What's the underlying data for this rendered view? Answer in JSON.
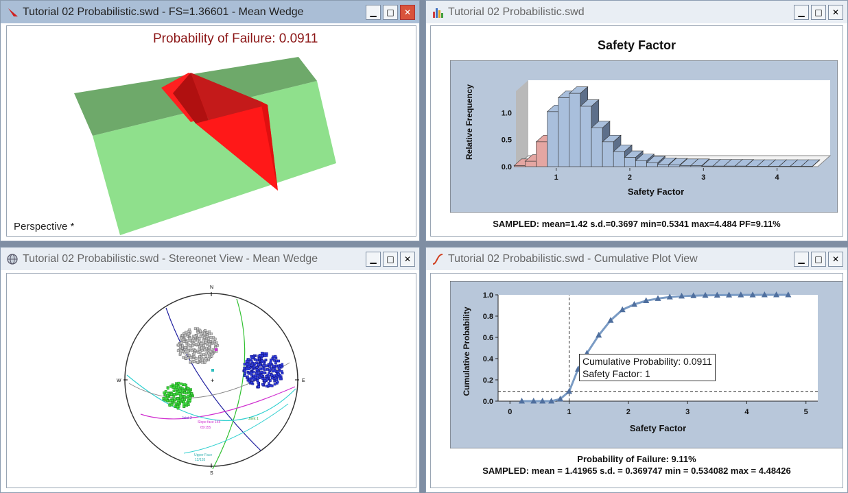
{
  "wedge_window": {
    "title": "Tutorial 02 Probabilistic.swd - FS=1.36601 - Mean Wedge",
    "pf_label": "Probability of Failure: 0.0911",
    "view_mode": "Perspective *",
    "icon": "wedge-app-icon"
  },
  "histogram_window": {
    "title": "Tutorial 02 Probabilistic.swd",
    "icon": "histogram-chart-icon",
    "summary": "SAMPLED: mean=1.42 s.d.=0.3697 min=0.5341 max=4.484 PF=9.11%"
  },
  "stereonet_window": {
    "title": "Tutorial 02 Probabilistic.swd - Stereonet View - Mean Wedge",
    "icon": "globe-icon",
    "labels": {
      "n": "N",
      "s": "S",
      "e": "E",
      "w": "W"
    }
  },
  "cumulative_window": {
    "title": "Tutorial 02 Probabilistic.swd - Cumulative Plot View",
    "icon": "cumulative-curve-icon",
    "tooltip_line1": "Cumulative Probability: 0.0911",
    "tooltip_line2": "Safety Factor: 1",
    "footer_pf": "Probability of Failure: 9.11%",
    "footer_stats": "SAMPLED: mean = 1.41965 s.d. = 0.369747 min = 0.534082 max = 4.48426"
  },
  "window_buttons": {
    "minimize": "▁",
    "maximize": "□",
    "close": "✕"
  },
  "chart_data": [
    {
      "type": "bar",
      "title": "Safety Factor",
      "xlabel": "Safety Factor",
      "ylabel": "Relative Frequency",
      "x_ticks": [
        "1",
        "2",
        "3",
        "4"
      ],
      "y_ticks": [
        "0.0",
        "0.5",
        "1.0"
      ],
      "bins_x": [
        0.55,
        0.7,
        0.85,
        1.0,
        1.15,
        1.3,
        1.45,
        1.6,
        1.75,
        1.9,
        2.05,
        2.2,
        2.35,
        2.5,
        2.65,
        2.8,
        2.95,
        3.1,
        3.25,
        3.4,
        3.55,
        3.7,
        3.85,
        4.0,
        4.15,
        4.3,
        4.45
      ],
      "values": [
        0.02,
        0.1,
        0.46,
        1.02,
        1.28,
        1.36,
        1.12,
        0.72,
        0.46,
        0.28,
        0.17,
        0.11,
        0.07,
        0.04,
        0.03,
        0.02,
        0.02,
        0.01,
        0.01,
        0.01,
        0.01,
        0.005,
        0.005,
        0.005,
        0.005,
        0.005,
        0.005
      ],
      "failed_threshold": 1.0,
      "xlim": [
        0.5,
        4.6
      ],
      "ylim": [
        0,
        1.4
      ],
      "colors": {
        "safe": "#a9bfdc",
        "failed": "#e4a6a2",
        "wall": "#b9b9b9",
        "plot_bg": "#b8c7da"
      }
    },
    {
      "type": "line",
      "xlabel": "Safety Factor",
      "ylabel": "Cumulative Probability",
      "x_ticks": [
        "0",
        "1",
        "2",
        "3",
        "4",
        "5"
      ],
      "y_ticks": [
        "0.0",
        "0.2",
        "0.4",
        "0.6",
        "0.8",
        "1.0"
      ],
      "x": [
        0.2,
        0.4,
        0.55,
        0.7,
        0.85,
        1.0,
        1.15,
        1.3,
        1.5,
        1.7,
        1.9,
        2.1,
        2.3,
        2.5,
        2.7,
        2.9,
        3.1,
        3.3,
        3.5,
        3.7,
        3.9,
        4.1,
        4.3,
        4.5,
        4.7
      ],
      "y": [
        0.0,
        0.0,
        0.0,
        0.0,
        0.02,
        0.0911,
        0.3,
        0.45,
        0.62,
        0.76,
        0.86,
        0.91,
        0.945,
        0.965,
        0.98,
        0.988,
        0.992,
        0.995,
        0.997,
        0.998,
        0.999,
        0.999,
        1.0,
        1.0,
        1.0
      ],
      "marker_line_x": 1.0,
      "marker_line_y": 0.0911,
      "xlim": [
        -0.2,
        5.2
      ],
      "ylim": [
        0,
        1.0
      ],
      "colors": {
        "line": "#7a9bc4",
        "marker": "#4f6f9e",
        "plot_bg": "#b8c7da"
      }
    }
  ]
}
